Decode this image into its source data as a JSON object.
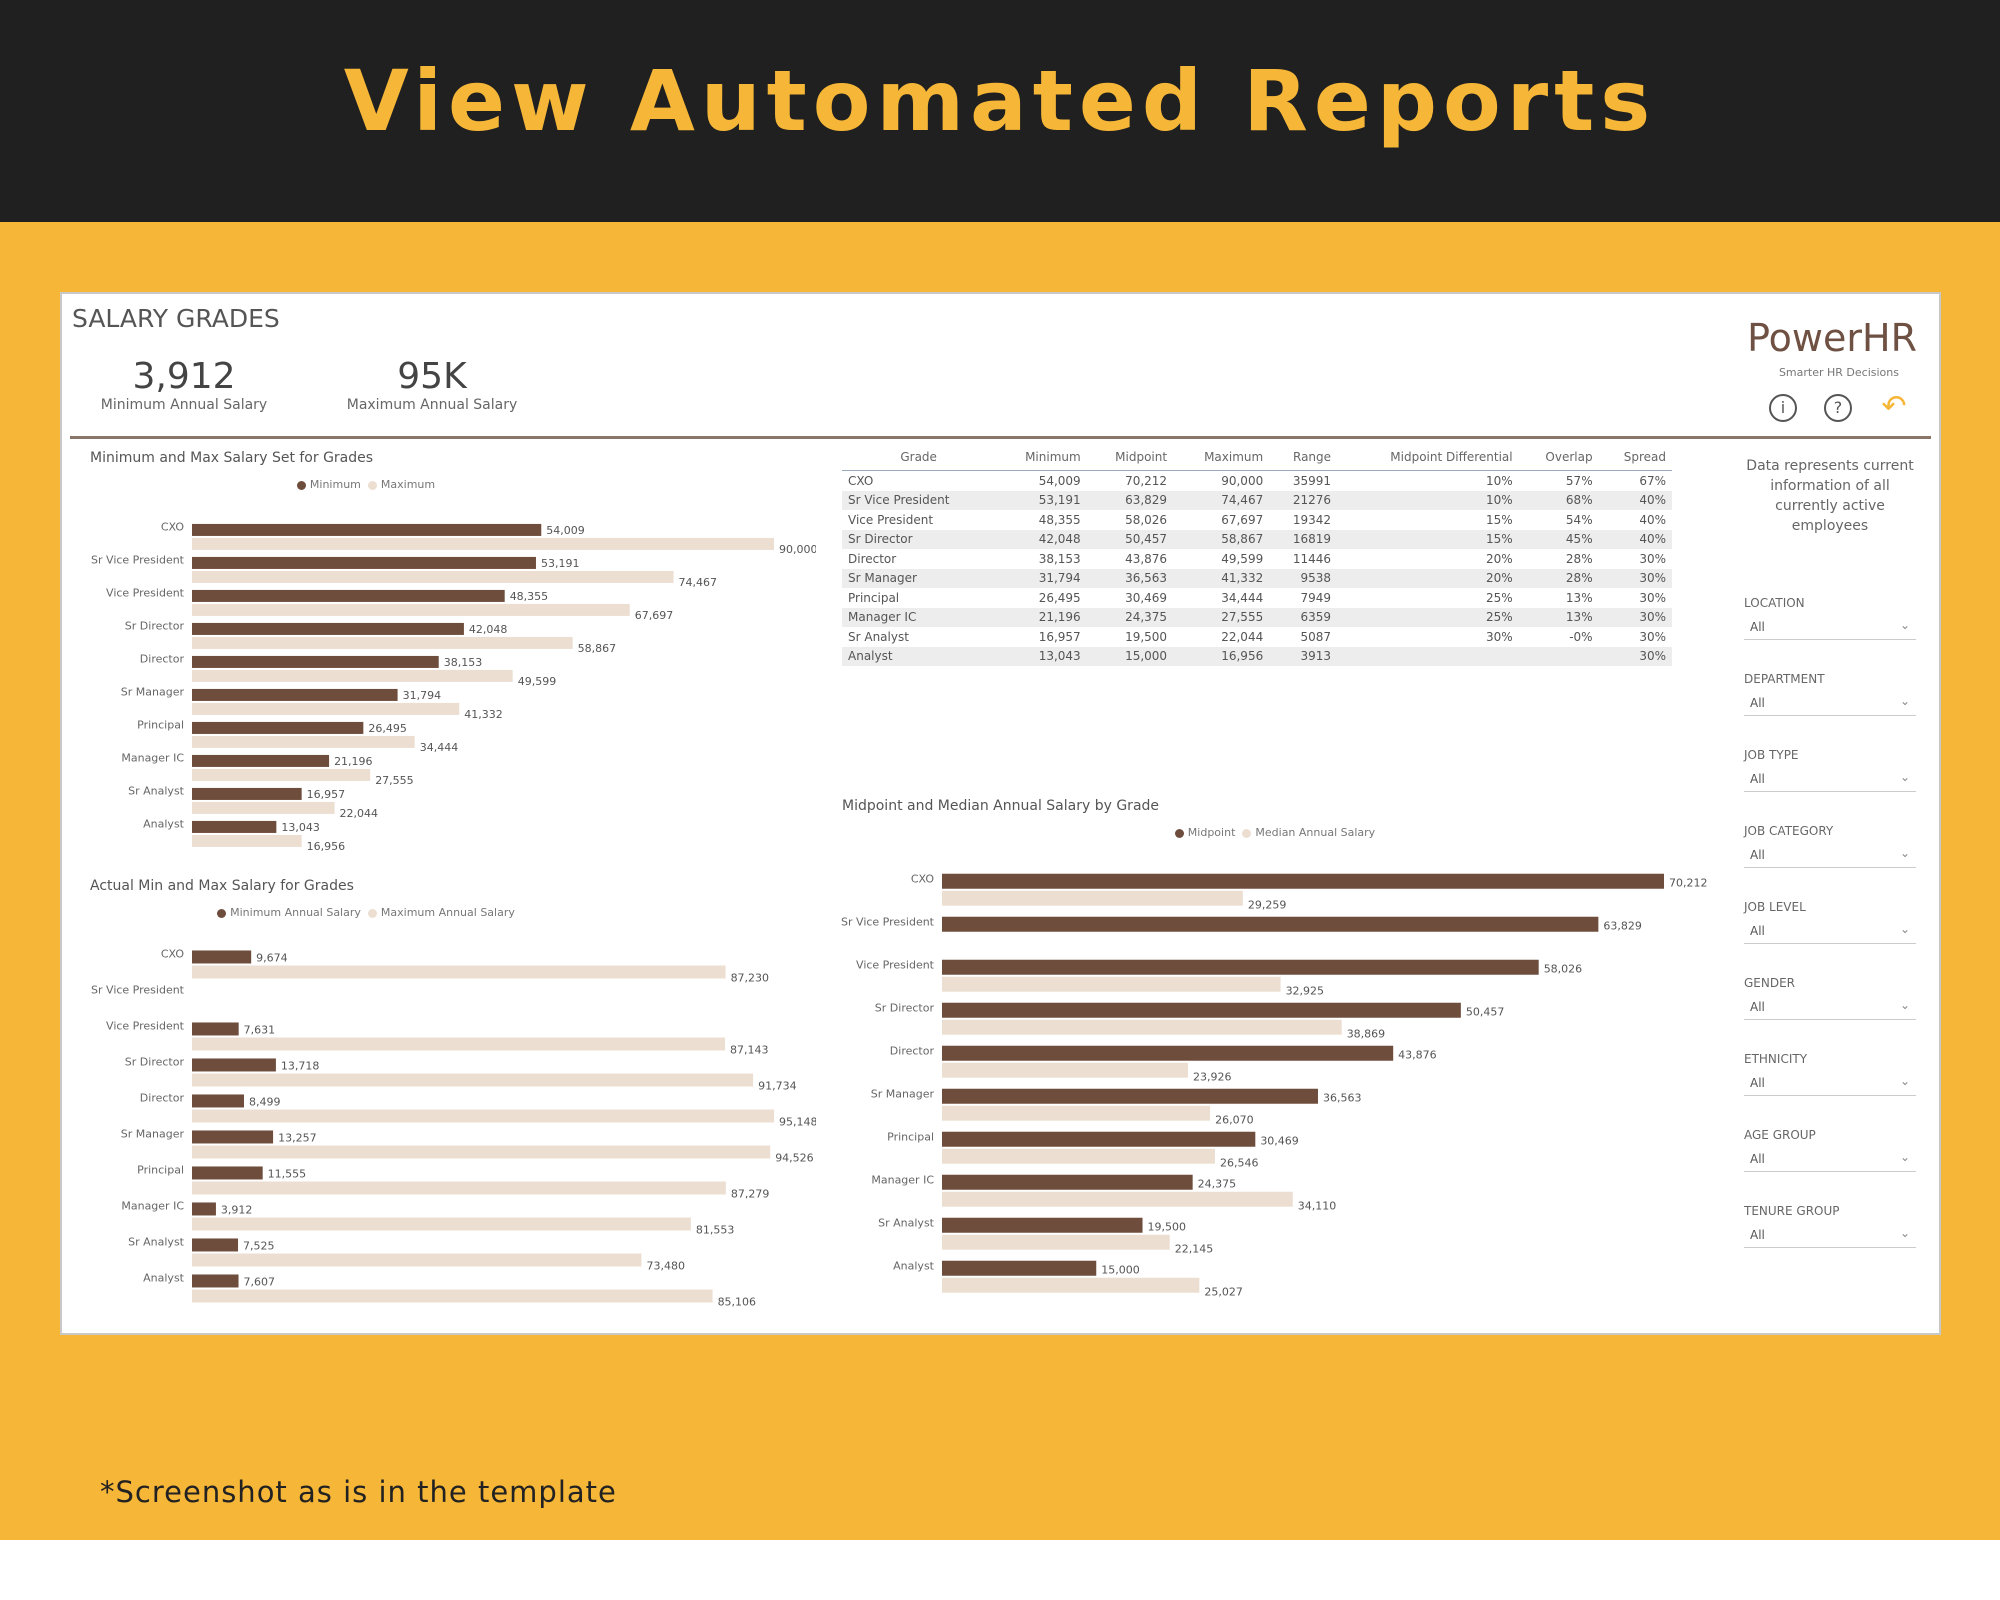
{
  "banner": {
    "title": "View Automated Reports"
  },
  "footnote": "*Screenshot as is in the template",
  "dashboard": {
    "title": "SALARY GRADES",
    "kpis": [
      {
        "value": "3,912",
        "label": "Minimum Annual Salary"
      },
      {
        "value": "95K",
        "label": "Maximum Annual Salary"
      }
    ],
    "brand": {
      "logo": "PowerHR",
      "tagline": "Smarter HR Decisions"
    },
    "icons": {
      "info": "i",
      "help": "?",
      "undo": "↶"
    },
    "side_note": "Data represents current information of all currently active employees",
    "slicers": [
      {
        "label": "LOCATION",
        "value": "All"
      },
      {
        "label": "DEPARTMENT",
        "value": "All"
      },
      {
        "label": "JOB TYPE",
        "value": "All"
      },
      {
        "label": "JOB CATEGORY",
        "value": "All"
      },
      {
        "label": "JOB LEVEL",
        "value": "All"
      },
      {
        "label": "GENDER",
        "value": "All"
      },
      {
        "label": "ETHNICITY",
        "value": "All"
      },
      {
        "label": "AGE GROUP",
        "value": "All"
      },
      {
        "label": "TENURE GROUP",
        "value": "All"
      }
    ],
    "table": {
      "headers": [
        "Grade",
        "Minimum",
        "Midpoint",
        "Maximum",
        "Range",
        "Midpoint Differential",
        "Overlap",
        "Spread"
      ],
      "rows": [
        [
          "CXO",
          "54,009",
          "70,212",
          "90,000",
          "35991",
          "10%",
          "57%",
          "67%"
        ],
        [
          "Sr Vice President",
          "53,191",
          "63,829",
          "74,467",
          "21276",
          "10%",
          "68%",
          "40%"
        ],
        [
          "Vice President",
          "48,355",
          "58,026",
          "67,697",
          "19342",
          "15%",
          "54%",
          "40%"
        ],
        [
          "Sr Director",
          "42,048",
          "50,457",
          "58,867",
          "16819",
          "15%",
          "45%",
          "40%"
        ],
        [
          "Director",
          "38,153",
          "43,876",
          "49,599",
          "11446",
          "20%",
          "28%",
          "30%"
        ],
        [
          "Sr Manager",
          "31,794",
          "36,563",
          "41,332",
          "9538",
          "20%",
          "28%",
          "30%"
        ],
        [
          "Principal",
          "26,495",
          "30,469",
          "34,444",
          "7949",
          "25%",
          "13%",
          "30%"
        ],
        [
          "Manager IC",
          "21,196",
          "24,375",
          "27,555",
          "6359",
          "25%",
          "13%",
          "30%"
        ],
        [
          "Sr Analyst",
          "16,957",
          "19,500",
          "22,044",
          "5087",
          "30%",
          "-0%",
          "30%"
        ],
        [
          "Analyst",
          "13,043",
          "15,000",
          "16,956",
          "3913",
          "",
          "",
          "30%"
        ]
      ]
    }
  },
  "colors": {
    "dark": "#6e4d3c",
    "light": "#ecdfd2",
    "gold": "#f6b637",
    "banner": "#202020"
  },
  "chart_data": [
    {
      "id": "c1",
      "type": "bar",
      "title": "Minimum and Max Salary Set for Grades",
      "categories": [
        "CXO",
        "Sr Vice President",
        "Vice President",
        "Sr Director",
        "Director",
        "Sr Manager",
        "Principal",
        "Manager IC",
        "Sr Analyst",
        "Analyst"
      ],
      "series": [
        {
          "name": "Minimum",
          "values": [
            54009,
            53191,
            48355,
            42048,
            38153,
            31794,
            26495,
            21196,
            16957,
            13043
          ],
          "labels": [
            "54,009",
            "53,191",
            "48,355",
            "42,048",
            "38,153",
            "31,794",
            "26,495",
            "21,196",
            "16,957",
            "13,043"
          ]
        },
        {
          "name": "Maximum",
          "values": [
            90000,
            74467,
            67697,
            58867,
            49599,
            41332,
            34444,
            27555,
            22044,
            16956
          ],
          "labels": [
            "90,000",
            "74,467",
            "67,697",
            "58,867",
            "49,599",
            "41,332",
            "34,444",
            "27,555",
            "22,044",
            "16,956"
          ]
        }
      ],
      "xlim": [
        0,
        90000
      ],
      "orientation": "horizontal",
      "legend": "top-center"
    },
    {
      "id": "c2",
      "type": "bar",
      "title": "Actual Min and Max Salary for Grades",
      "categories": [
        "CXO",
        "Sr Vice President",
        "Vice President",
        "Sr Director",
        "Director",
        "Sr Manager",
        "Principal",
        "Manager IC",
        "Sr Analyst",
        "Analyst"
      ],
      "series": [
        {
          "name": "Minimum Annual Salary",
          "values": [
            9674,
            null,
            7631,
            13718,
            8499,
            13257,
            11555,
            3912,
            7525,
            7607
          ],
          "labels": [
            "9,674",
            "",
            "7,631",
            "13,718",
            "8,499",
            "13,257",
            "11,555",
            "3,912",
            "7,525",
            "7,607"
          ]
        },
        {
          "name": "Maximum Annual Salary",
          "values": [
            87230,
            null,
            87143,
            91734,
            95148,
            94526,
            87279,
            81553,
            73480,
            85106
          ],
          "labels": [
            "87,230",
            "",
            "87,143",
            "91,734",
            "95,148",
            "94,526",
            "87,279",
            "81,553",
            "73,480",
            "85,106"
          ]
        }
      ],
      "xlim": [
        0,
        95148
      ],
      "orientation": "horizontal",
      "legend": "top-center"
    },
    {
      "id": "c3",
      "type": "bar",
      "title": "Midpoint and Median Annual Salary by Grade",
      "categories": [
        "CXO",
        "Sr Vice President",
        "Vice President",
        "Sr Director",
        "Director",
        "Sr Manager",
        "Principal",
        "Manager IC",
        "Sr Analyst",
        "Analyst"
      ],
      "series": [
        {
          "name": "Midpoint",
          "values": [
            70212,
            63829,
            58026,
            50457,
            43876,
            36563,
            30469,
            24375,
            19500,
            15000
          ],
          "labels": [
            "70,212",
            "63,829",
            "58,026",
            "50,457",
            "43,876",
            "36,563",
            "30,469",
            "24,375",
            "19,500",
            "15,000"
          ]
        },
        {
          "name": "Median Annual Salary",
          "values": [
            29259,
            null,
            32925,
            38869,
            23926,
            26070,
            26546,
            34110,
            22145,
            25027
          ],
          "labels": [
            "29,259",
            "",
            "32,925",
            "38,869",
            "23,926",
            "26,070",
            "26,546",
            "34,110",
            "22,145",
            "25,027"
          ]
        }
      ],
      "xlim": [
        0,
        70212
      ],
      "orientation": "horizontal",
      "legend": "top-center"
    }
  ]
}
